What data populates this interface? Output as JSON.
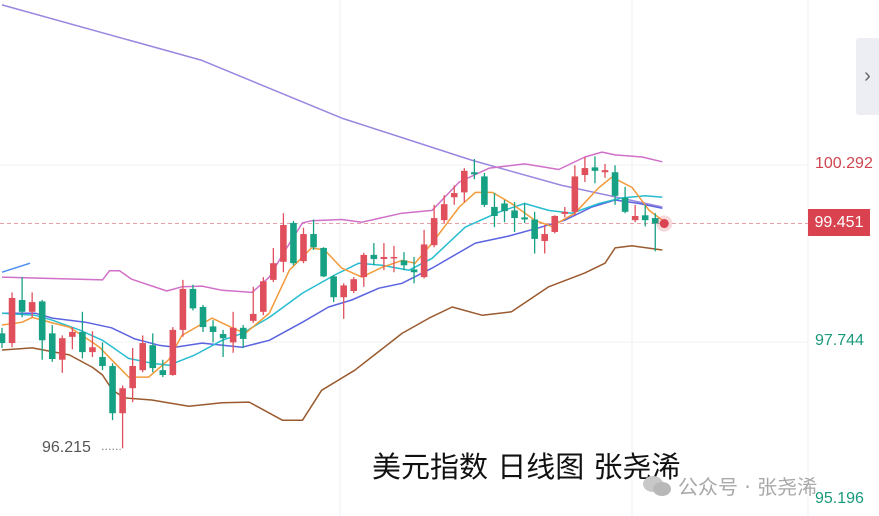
{
  "chart_data": {
    "type": "candlestick",
    "title": "美元指数 日线图 张尧浠",
    "ylim": [
      95.24,
      102.67
    ],
    "grid": true,
    "colors": {
      "up": "#e0505c",
      "down": "#17a184",
      "ma5": "#f39a3a",
      "ma10": "#27bcd0",
      "ma20": "#5b63e0",
      "long_ma": "#9a86e0",
      "boll_upper": "#d070c8",
      "boll_lower": "#9a5a2e",
      "ma_partial": "#4a8ef0",
      "last_price": "#d9434f",
      "axis_up": "#d0454f",
      "axis_down": "#1a9a7c"
    },
    "candles": [
      [
        97.87,
        97.95,
        97.66,
        97.73
      ],
      [
        97.73,
        98.46,
        97.67,
        98.38
      ],
      [
        98.35,
        98.68,
        98.1,
        98.18
      ],
      [
        98.18,
        98.46,
        98.1,
        98.32
      ],
      [
        98.33,
        98.35,
        97.49,
        97.77
      ],
      [
        97.87,
        97.99,
        97.46,
        97.5
      ],
      [
        97.49,
        97.84,
        97.3,
        97.8
      ],
      [
        97.82,
        97.96,
        97.64,
        97.89
      ],
      [
        97.89,
        98.18,
        97.51,
        97.6
      ],
      [
        97.6,
        97.9,
        97.53,
        97.67
      ],
      [
        97.53,
        97.74,
        97.34,
        97.4
      ],
      [
        97.4,
        97.44,
        96.62,
        96.72
      ],
      [
        96.72,
        97.12,
        96.215,
        97.08
      ],
      [
        97.08,
        97.66,
        96.88,
        97.4
      ],
      [
        97.34,
        97.84,
        97.31,
        97.73
      ],
      [
        97.7,
        97.87,
        97.31,
        97.37
      ],
      [
        97.34,
        97.49,
        97.24,
        97.27
      ],
      [
        97.27,
        97.96,
        97.26,
        97.92
      ],
      [
        97.92,
        98.64,
        97.82,
        98.51
      ],
      [
        98.51,
        98.57,
        98.2,
        98.23
      ],
      [
        98.25,
        98.28,
        97.89,
        97.96
      ],
      [
        97.97,
        98.06,
        97.74,
        97.89
      ],
      [
        97.86,
        97.92,
        97.53,
        97.8
      ],
      [
        97.74,
        98.18,
        97.59,
        97.95
      ],
      [
        97.95,
        97.99,
        97.66,
        97.79
      ],
      [
        98.05,
        98.54,
        98.02,
        98.15
      ],
      [
        98.18,
        98.68,
        98.13,
        98.62
      ],
      [
        98.64,
        99.1,
        98.61,
        98.88
      ],
      [
        98.9,
        99.6,
        98.75,
        99.43
      ],
      [
        99.46,
        99.49,
        98.85,
        98.88
      ],
      [
        98.91,
        99.39,
        98.88,
        99.3
      ],
      [
        99.3,
        99.51,
        99.07,
        99.11
      ],
      [
        99.1,
        99.11,
        98.68,
        98.69
      ],
      [
        98.69,
        98.71,
        98.32,
        98.39
      ],
      [
        98.39,
        98.59,
        98.08,
        98.56
      ],
      [
        98.48,
        98.68,
        98.45,
        98.65
      ],
      [
        98.68,
        99.03,
        98.54,
        99.0
      ],
      [
        99.0,
        99.17,
        98.85,
        98.94
      ],
      [
        98.94,
        99.17,
        98.78,
        98.97
      ],
      [
        98.95,
        99.13,
        98.75,
        98.97
      ],
      [
        98.92,
        99.04,
        98.78,
        98.85
      ],
      [
        98.79,
        98.97,
        98.59,
        98.75
      ],
      [
        98.68,
        99.36,
        98.66,
        99.15
      ],
      [
        99.14,
        99.72,
        99.11,
        99.53
      ],
      [
        99.5,
        99.86,
        99.46,
        99.73
      ],
      [
        99.83,
        100.0,
        99.72,
        99.89
      ],
      [
        99.9,
        100.25,
        99.76,
        100.21
      ],
      [
        100.19,
        100.38,
        100.09,
        100.16
      ],
      [
        100.13,
        100.18,
        99.69,
        99.72
      ],
      [
        99.69,
        99.89,
        99.4,
        99.56
      ],
      [
        99.74,
        99.79,
        99.47,
        99.63
      ],
      [
        99.64,
        99.76,
        99.33,
        99.53
      ],
      [
        99.54,
        99.75,
        99.46,
        99.51
      ],
      [
        99.51,
        99.62,
        99.02,
        99.23
      ],
      [
        99.2,
        99.43,
        99.02,
        99.3
      ],
      [
        99.33,
        99.57,
        99.31,
        99.56
      ],
      [
        99.59,
        99.69,
        99.54,
        99.62
      ],
      [
        99.62,
        100.29,
        99.57,
        100.13
      ],
      [
        100.15,
        100.41,
        100.05,
        100.25
      ],
      [
        100.26,
        100.42,
        100.03,
        100.21
      ],
      [
        100.19,
        100.31,
        100.11,
        100.22
      ],
      [
        100.19,
        100.29,
        99.72,
        99.85
      ],
      [
        99.82,
        99.98,
        99.6,
        99.62
      ],
      [
        99.5,
        99.72,
        99.47,
        99.56
      ],
      [
        99.57,
        99.72,
        99.41,
        99.5
      ],
      [
        99.53,
        99.6,
        99.05,
        99.451
      ]
    ],
    "lines": {
      "long_ma": [
        [
          0,
          102.6
        ],
        [
          19.9,
          101.8
        ],
        [
          33.8,
          100.97
        ],
        [
          46.8,
          100.36
        ],
        [
          55.7,
          100.0
        ],
        [
          65.7,
          99.69
        ]
      ],
      "boll_upper": [
        [
          0,
          98.68
        ],
        [
          10,
          98.64
        ],
        [
          10.7,
          98.77
        ],
        [
          11.7,
          98.77
        ],
        [
          12.9,
          98.65
        ],
        [
          16.4,
          98.48
        ],
        [
          17.9,
          98.54
        ],
        [
          19.9,
          98.55
        ],
        [
          21.9,
          98.49
        ],
        [
          24.9,
          98.46
        ],
        [
          26.6,
          98.68
        ],
        [
          28.2,
          99.07
        ],
        [
          29.9,
          99.46
        ],
        [
          30.8,
          99.49
        ],
        [
          33.8,
          99.51
        ],
        [
          35.8,
          99.47
        ],
        [
          39.8,
          99.6
        ],
        [
          42.8,
          99.64
        ],
        [
          45.5,
          100.05
        ],
        [
          48.5,
          100.25
        ],
        [
          52,
          100.31
        ],
        [
          55.4,
          100.23
        ],
        [
          58,
          100.41
        ],
        [
          59.7,
          100.48
        ],
        [
          61,
          100.44
        ],
        [
          63.7,
          100.41
        ],
        [
          65.7,
          100.34
        ]
      ],
      "boll_lower": [
        [
          0,
          97.63
        ],
        [
          3,
          97.66
        ],
        [
          6.7,
          97.56
        ],
        [
          9,
          97.38
        ],
        [
          10,
          97.27
        ],
        [
          11,
          97.05
        ],
        [
          12.2,
          96.94
        ],
        [
          14.9,
          96.91
        ],
        [
          18.6,
          96.82
        ],
        [
          21.9,
          96.87
        ],
        [
          24.6,
          96.88
        ],
        [
          27.9,
          96.62
        ],
        [
          29.9,
          96.62
        ],
        [
          31.8,
          97.05
        ],
        [
          35.1,
          97.34
        ],
        [
          39.8,
          97.87
        ],
        [
          42.5,
          98.09
        ],
        [
          44.8,
          98.25
        ],
        [
          47.8,
          98.13
        ],
        [
          50.7,
          98.18
        ],
        [
          54.4,
          98.54
        ],
        [
          58,
          98.74
        ],
        [
          60,
          98.88
        ],
        [
          61,
          99.1
        ],
        [
          62.7,
          99.13
        ],
        [
          65.7,
          99.07
        ]
      ],
      "ma5": [
        [
          0,
          97.99
        ],
        [
          2,
          98.03
        ],
        [
          3,
          98.1
        ],
        [
          5,
          98.02
        ],
        [
          6.7,
          97.96
        ],
        [
          8.7,
          97.77
        ],
        [
          9.7,
          97.67
        ],
        [
          10.9,
          97.49
        ],
        [
          12.6,
          97.24
        ],
        [
          14.6,
          97.24
        ],
        [
          16.6,
          97.49
        ],
        [
          17.9,
          97.84
        ],
        [
          20.9,
          98.09
        ],
        [
          22.9,
          97.95
        ],
        [
          24.2,
          97.87
        ],
        [
          26.6,
          98.16
        ],
        [
          28.6,
          98.78
        ],
        [
          30.8,
          99.1
        ],
        [
          32.1,
          99.07
        ],
        [
          33.8,
          98.81
        ],
        [
          35.8,
          98.68
        ],
        [
          37.8,
          98.82
        ],
        [
          39.8,
          98.92
        ],
        [
          41.1,
          98.88
        ],
        [
          42.8,
          99.17
        ],
        [
          45.5,
          99.69
        ],
        [
          47.1,
          99.9
        ],
        [
          48.8,
          99.9
        ],
        [
          50.7,
          99.74
        ],
        [
          53,
          99.5
        ],
        [
          54.7,
          99.41
        ],
        [
          57,
          99.6
        ],
        [
          59.4,
          99.97
        ],
        [
          60.7,
          100.12
        ],
        [
          62.7,
          99.97
        ],
        [
          64.4,
          99.64
        ],
        [
          65.7,
          99.5
        ]
      ],
      "ma10": [
        [
          0,
          98.16
        ],
        [
          3.3,
          98.13
        ],
        [
          5,
          98.06
        ],
        [
          7.7,
          97.92
        ],
        [
          10,
          97.77
        ],
        [
          12.6,
          97.51
        ],
        [
          14.9,
          97.44
        ],
        [
          16.6,
          97.41
        ],
        [
          19.2,
          97.56
        ],
        [
          21.9,
          97.77
        ],
        [
          23.9,
          97.87
        ],
        [
          26.6,
          98.1
        ],
        [
          29.9,
          98.45
        ],
        [
          33.1,
          98.71
        ],
        [
          35.5,
          98.88
        ],
        [
          37.8,
          98.85
        ],
        [
          40.5,
          98.78
        ],
        [
          42.8,
          98.95
        ],
        [
          46.1,
          99.4
        ],
        [
          49.5,
          99.62
        ],
        [
          52,
          99.74
        ],
        [
          54.4,
          99.64
        ],
        [
          56.7,
          99.6
        ],
        [
          59.4,
          99.74
        ],
        [
          61.7,
          99.82
        ],
        [
          64,
          99.85
        ],
        [
          65.7,
          99.83
        ]
      ],
      "ma20": [
        [
          0,
          98.16
        ],
        [
          3.3,
          98.16
        ],
        [
          5,
          98.09
        ],
        [
          8.3,
          98.03
        ],
        [
          10.9,
          97.95
        ],
        [
          13.2,
          97.79
        ],
        [
          15.6,
          97.7
        ],
        [
          17.2,
          97.67
        ],
        [
          19.9,
          97.73
        ],
        [
          23.9,
          97.67
        ],
        [
          26.6,
          97.77
        ],
        [
          29.9,
          98.03
        ],
        [
          32.5,
          98.25
        ],
        [
          34.8,
          98.35
        ],
        [
          37.5,
          98.52
        ],
        [
          39.8,
          98.59
        ],
        [
          42.8,
          98.81
        ],
        [
          47.1,
          99.17
        ],
        [
          50.4,
          99.27
        ],
        [
          53.4,
          99.39
        ],
        [
          56,
          99.5
        ],
        [
          58.7,
          99.69
        ],
        [
          61,
          99.79
        ],
        [
          63.4,
          99.74
        ],
        [
          65.7,
          99.67
        ]
      ],
      "ma_partial": [
        [
          0,
          98.75
        ],
        [
          2.8,
          98.88
        ]
      ]
    },
    "price_labels": {
      "upper": "100.292",
      "last": "99.451",
      "mid": "97.744",
      "bottom": "95.196",
      "low_marker": "96.215"
    }
  },
  "watermark": {
    "text": "公众号 · 张尧浠",
    "icon": "wechat-icon"
  },
  "side_button": {
    "icon": "chevron-right-icon",
    "glyph": "›"
  }
}
